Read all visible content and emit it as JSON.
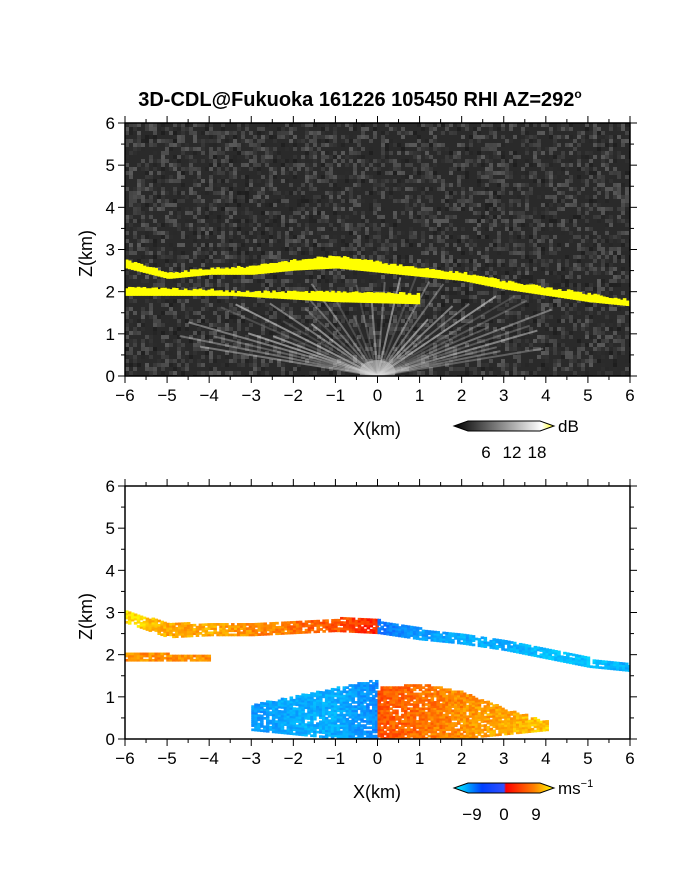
{
  "title": "3D-CDL@Fukuoka 161226 105450 RHI AZ=292",
  "title_superscript": "o",
  "chart_data": [
    {
      "type": "heatmap",
      "name": "reflectivity",
      "xlabel": "X(km)",
      "ylabel": "Z(km)",
      "xlim": [
        -6,
        6
      ],
      "ylim": [
        0,
        6
      ],
      "x_ticks": [
        "-6",
        "-5",
        "-4",
        "-3",
        "-2",
        "-1",
        "0",
        "1",
        "2",
        "3",
        "4",
        "5",
        "6"
      ],
      "y_ticks": [
        "0",
        "1",
        "2",
        "3",
        "4",
        "5",
        "6"
      ],
      "background": "grayscale noise",
      "colorbar": {
        "unit": "dB",
        "ticks": [
          "6",
          "12",
          "18"
        ],
        "colors": [
          "#000000",
          "#ffffff",
          "#ffff00"
        ]
      },
      "features": [
        {
          "layer": "upper yellow band",
          "x": [
            -6,
            -5,
            -4,
            -3,
            -2,
            -1,
            0,
            1,
            2,
            3,
            4,
            5,
            6
          ],
          "z_top": [
            2.75,
            2.45,
            2.55,
            2.6,
            2.75,
            2.85,
            2.7,
            2.55,
            2.45,
            2.25,
            2.1,
            1.95,
            1.8
          ],
          "z_bottom": [
            2.55,
            2.3,
            2.4,
            2.4,
            2.5,
            2.55,
            2.45,
            2.35,
            2.25,
            2.05,
            1.9,
            1.75,
            1.65
          ]
        },
        {
          "layer": "lower yellow band",
          "x": [
            -6,
            -4,
            -3.5,
            -1,
            1
          ],
          "z_top": [
            2.1,
            2.05,
            2.0,
            2.0,
            1.95
          ],
          "z_bottom": [
            1.9,
            1.9,
            1.9,
            1.75,
            1.7
          ]
        }
      ]
    },
    {
      "type": "heatmap",
      "name": "doppler velocity",
      "xlabel": "X(km)",
      "ylabel": "Z(km)",
      "xlim": [
        -6,
        6
      ],
      "ylim": [
        0,
        6
      ],
      "x_ticks": [
        "-6",
        "-5",
        "-4",
        "-3",
        "-2",
        "-1",
        "0",
        "1",
        "2",
        "3",
        "4",
        "5",
        "6"
      ],
      "y_ticks": [
        "0",
        "1",
        "2",
        "3",
        "4",
        "5",
        "6"
      ],
      "colorbar": {
        "unit": "ms",
        "unit_superscript": "−1",
        "ticks": [
          "−9",
          "0",
          "9"
        ],
        "colors": [
          "#00ffff",
          "#0040ff",
          "#ff0000",
          "#ffff00"
        ]
      },
      "features": [
        {
          "layer": "upper band west (positive)",
          "x": [
            -6,
            -5,
            -4,
            -3,
            -2,
            -1,
            0
          ],
          "z_top": [
            3.0,
            2.75,
            2.7,
            2.7,
            2.75,
            2.85,
            2.8
          ],
          "z_bottom": [
            2.75,
            2.4,
            2.45,
            2.45,
            2.5,
            2.55,
            2.5
          ],
          "velocity": [
            8,
            6,
            6,
            5,
            4,
            3,
            1
          ]
        },
        {
          "layer": "upper band east (negative)",
          "x": [
            0,
            1,
            2,
            3,
            4,
            5,
            6
          ],
          "z_top": [
            2.8,
            2.6,
            2.45,
            2.3,
            2.15,
            1.9,
            1.8
          ],
          "z_bottom": [
            2.5,
            2.35,
            2.25,
            2.1,
            1.9,
            1.7,
            1.6
          ],
          "velocity": [
            -3,
            -5,
            -6,
            -6,
            -7,
            -7,
            -6
          ]
        },
        {
          "layer": "lower band west (positive)",
          "x": [
            -6,
            -5,
            -4
          ],
          "z_top": [
            2.05,
            2.0,
            2.0
          ],
          "z_bottom": [
            1.85,
            1.85,
            1.85
          ],
          "velocity": [
            5,
            5,
            5
          ]
        },
        {
          "layer": "near-ground west (negative)",
          "x": [
            -3,
            -2,
            -1,
            0
          ],
          "z_top": [
            0.8,
            1.0,
            1.2,
            1.4
          ],
          "z_bottom": [
            0.2,
            0.1,
            0.0,
            0.0
          ],
          "velocity": [
            -5,
            -6,
            -6,
            -4
          ]
        },
        {
          "layer": "near-ground east (positive)",
          "x": [
            0,
            1,
            2,
            3,
            4
          ],
          "z_top": [
            1.2,
            1.3,
            1.1,
            0.7,
            0.4
          ],
          "z_bottom": [
            0.0,
            0.0,
            0.0,
            0.1,
            0.2
          ],
          "velocity": [
            3,
            4,
            5,
            6,
            7
          ]
        }
      ]
    }
  ]
}
